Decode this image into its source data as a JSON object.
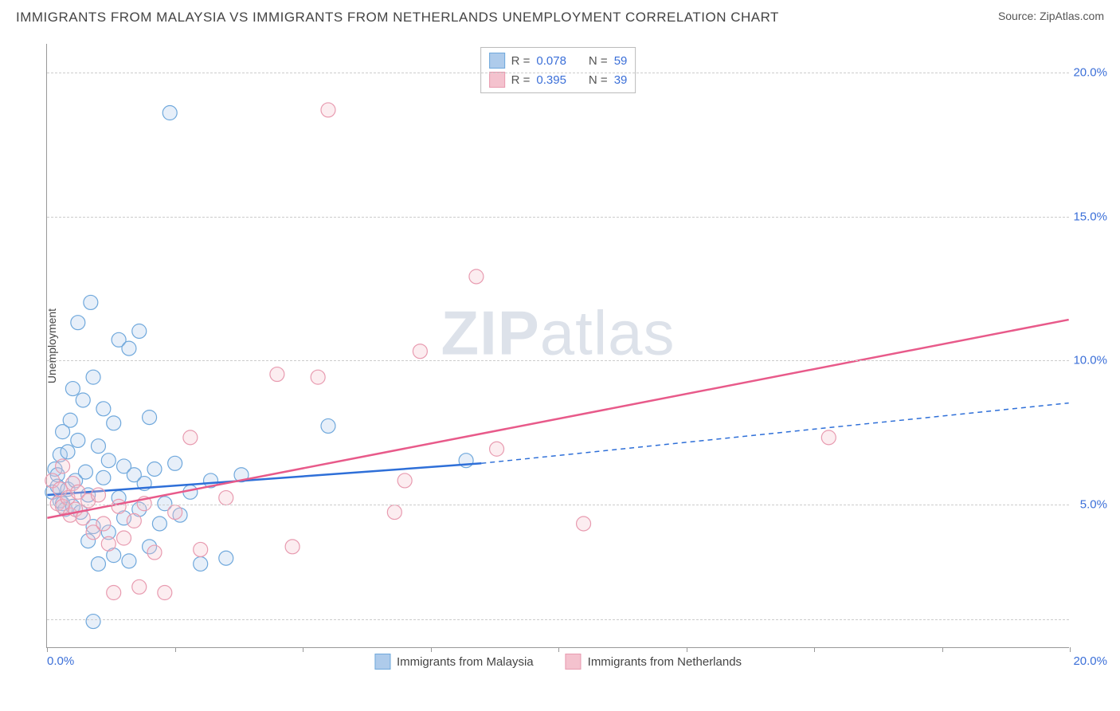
{
  "header": {
    "title": "IMMIGRANTS FROM MALAYSIA VS IMMIGRANTS FROM NETHERLANDS UNEMPLOYMENT CORRELATION CHART",
    "source": "Source: ZipAtlas.com"
  },
  "chart": {
    "type": "scatter",
    "y_axis_title": "Unemployment",
    "watermark": "ZIPatlas",
    "xlim": [
      0,
      20
    ],
    "ylim": [
      0,
      21
    ],
    "x_ticks": [
      0,
      2.5,
      5,
      7.5,
      10,
      12.5,
      15,
      17.5,
      20
    ],
    "x_tick_labels": {
      "0": "0.0%",
      "20": "20.0%"
    },
    "y_gridlines": [
      1,
      5,
      10,
      15,
      20
    ],
    "y_tick_labels": {
      "5": "5.0%",
      "10": "10.0%",
      "15": "15.0%",
      "20": "20.0%"
    },
    "background_color": "#ffffff",
    "grid_color": "#cccccc",
    "axis_color": "#999999",
    "tick_label_color": "#3b6fd8",
    "marker_radius": 9,
    "marker_stroke_width": 1.2,
    "marker_fill_opacity": 0.3,
    "trend_line_width": 2.5,
    "series": [
      {
        "name": "Immigrants from Malaysia",
        "color_stroke": "#6fa8dc",
        "color_fill": "#aecbeb",
        "trend_color": "#2e6fd8",
        "r": "0.078",
        "n": "59",
        "trend": {
          "x1": 0,
          "y1": 5.3,
          "x2": 8.5,
          "y2": 6.4,
          "x2_ext": 20,
          "y2_ext": 8.5
        },
        "points": [
          [
            0.1,
            5.4
          ],
          [
            0.15,
            6.2
          ],
          [
            0.2,
            6.0
          ],
          [
            0.2,
            5.6
          ],
          [
            0.25,
            5.1
          ],
          [
            0.25,
            6.7
          ],
          [
            0.3,
            5.0
          ],
          [
            0.3,
            7.5
          ],
          [
            0.35,
            4.8
          ],
          [
            0.4,
            6.8
          ],
          [
            0.4,
            5.5
          ],
          [
            0.45,
            7.9
          ],
          [
            0.5,
            4.9
          ],
          [
            0.5,
            9.0
          ],
          [
            0.55,
            5.8
          ],
          [
            0.6,
            7.2
          ],
          [
            0.6,
            11.3
          ],
          [
            0.65,
            4.7
          ],
          [
            0.7,
            8.6
          ],
          [
            0.75,
            6.1
          ],
          [
            0.8,
            5.3
          ],
          [
            0.8,
            3.7
          ],
          [
            0.85,
            12.0
          ],
          [
            0.9,
            9.4
          ],
          [
            0.9,
            4.2
          ],
          [
            1.0,
            7.0
          ],
          [
            1.0,
            2.9
          ],
          [
            1.1,
            5.9
          ],
          [
            1.1,
            8.3
          ],
          [
            1.2,
            6.5
          ],
          [
            1.2,
            4.0
          ],
          [
            1.3,
            3.2
          ],
          [
            1.3,
            7.8
          ],
          [
            1.4,
            5.2
          ],
          [
            1.4,
            10.7
          ],
          [
            1.5,
            6.3
          ],
          [
            1.5,
            4.5
          ],
          [
            1.6,
            10.4
          ],
          [
            1.6,
            3.0
          ],
          [
            1.7,
            6.0
          ],
          [
            1.8,
            11.0
          ],
          [
            1.8,
            4.8
          ],
          [
            1.9,
            5.7
          ],
          [
            2.0,
            8.0
          ],
          [
            2.0,
            3.5
          ],
          [
            2.1,
            6.2
          ],
          [
            2.2,
            4.3
          ],
          [
            2.3,
            5.0
          ],
          [
            2.4,
            18.6
          ],
          [
            2.5,
            6.4
          ],
          [
            2.6,
            4.6
          ],
          [
            2.8,
            5.4
          ],
          [
            3.0,
            2.9
          ],
          [
            3.2,
            5.8
          ],
          [
            3.5,
            3.1
          ],
          [
            3.8,
            6.0
          ],
          [
            5.5,
            7.7
          ],
          [
            8.2,
            6.5
          ],
          [
            0.9,
            0.9
          ]
        ]
      },
      {
        "name": "Immigrants from Netherlands",
        "color_stroke": "#e89bb0",
        "color_fill": "#f4c2ce",
        "trend_color": "#e85a8a",
        "r": "0.395",
        "n": "39",
        "trend": {
          "x1": 0,
          "y1": 4.5,
          "x2": 20,
          "y2": 11.4
        },
        "points": [
          [
            0.1,
            5.8
          ],
          [
            0.2,
            5.0
          ],
          [
            0.25,
            5.5
          ],
          [
            0.3,
            4.9
          ],
          [
            0.3,
            6.3
          ],
          [
            0.4,
            5.2
          ],
          [
            0.45,
            4.6
          ],
          [
            0.5,
            5.7
          ],
          [
            0.55,
            4.8
          ],
          [
            0.6,
            5.4
          ],
          [
            0.7,
            4.5
          ],
          [
            0.8,
            5.1
          ],
          [
            0.9,
            4.0
          ],
          [
            1.0,
            5.3
          ],
          [
            1.1,
            4.3
          ],
          [
            1.2,
            3.6
          ],
          [
            1.3,
            1.9
          ],
          [
            1.4,
            4.9
          ],
          [
            1.5,
            3.8
          ],
          [
            1.7,
            4.4
          ],
          [
            1.8,
            2.1
          ],
          [
            1.9,
            5.0
          ],
          [
            2.1,
            3.3
          ],
          [
            2.3,
            1.9
          ],
          [
            2.5,
            4.7
          ],
          [
            2.8,
            7.3
          ],
          [
            3.0,
            3.4
          ],
          [
            3.5,
            5.2
          ],
          [
            4.5,
            9.5
          ],
          [
            4.8,
            3.5
          ],
          [
            5.3,
            9.4
          ],
          [
            5.5,
            18.7
          ],
          [
            6.8,
            4.7
          ],
          [
            7.0,
            5.8
          ],
          [
            7.3,
            10.3
          ],
          [
            8.4,
            12.9
          ],
          [
            8.8,
            6.9
          ],
          [
            10.5,
            4.3
          ],
          [
            15.3,
            7.3
          ]
        ]
      }
    ],
    "legend_top": {
      "r_label": "R =",
      "n_label": "N ="
    },
    "legend_bottom_labels": [
      "Immigrants from Malaysia",
      "Immigrants from Netherlands"
    ]
  }
}
